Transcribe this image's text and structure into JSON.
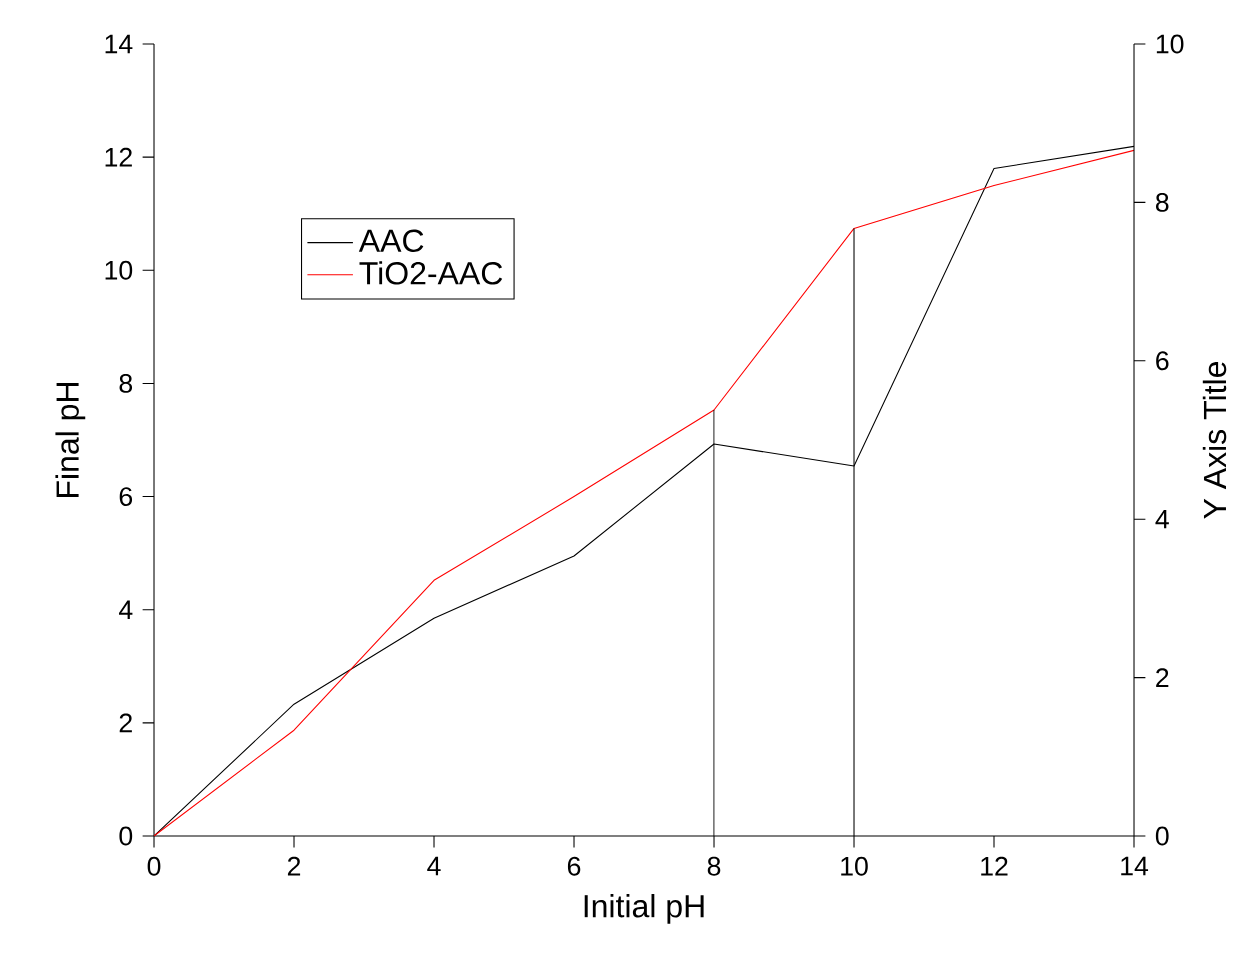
{
  "chart_data": {
    "type": "line",
    "xlabel": "Initial pH",
    "ylabel": "Final pH",
    "y2label": "Y Axis Title",
    "x": [
      0,
      2,
      4,
      6,
      8,
      10,
      12,
      14
    ],
    "series": [
      {
        "name": "AAC",
        "color": "#000000",
        "values": [
          0,
          2.33,
          3.85,
          4.95,
          6.93,
          6.54,
          11.8,
          12.19
        ]
      },
      {
        "name": "TiO2-AAC",
        "color": "#ff0000",
        "values": [
          0,
          1.87,
          4.52,
          6.0,
          7.53,
          10.74,
          11.5,
          12.12
        ]
      }
    ],
    "xlim": [
      0,
      14
    ],
    "ylim": [
      0,
      14
    ],
    "y2lim": [
      0,
      10
    ],
    "xticks": [
      0,
      2,
      4,
      6,
      8,
      10,
      12,
      14
    ],
    "yticks": [
      0,
      2,
      4,
      6,
      8,
      10,
      12,
      14
    ],
    "y2ticks": [
      0,
      2,
      4,
      6,
      8,
      10
    ],
    "ref_lines": [
      {
        "axis": "x",
        "value": 8
      },
      {
        "axis": "x",
        "value": 10
      }
    ],
    "legend": "top left",
    "grid": false,
    "marker": "none",
    "line_style": "solid"
  }
}
